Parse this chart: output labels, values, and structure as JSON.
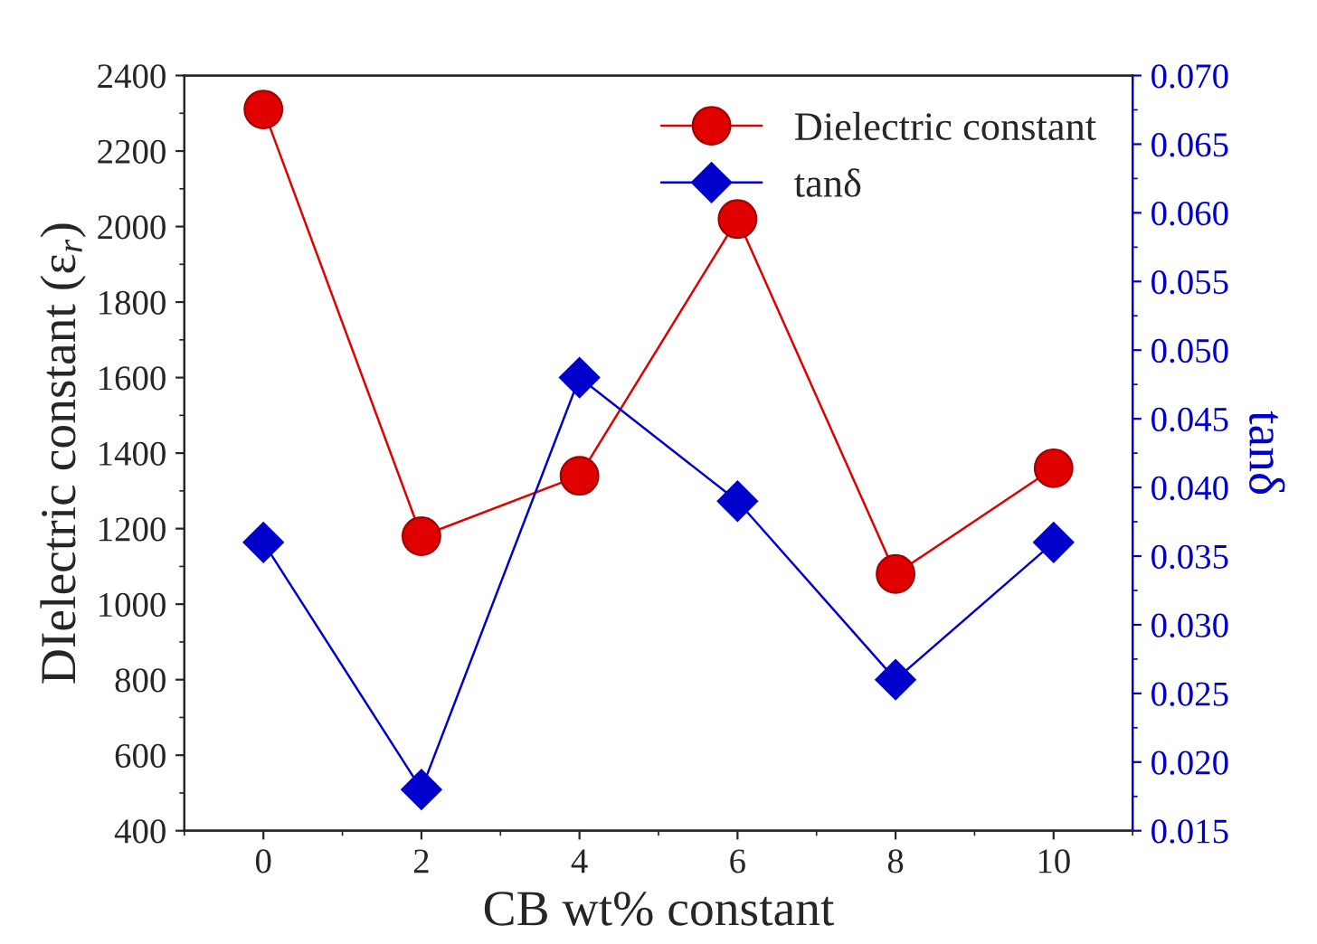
{
  "chart_data": {
    "type": "line",
    "xlabel": "CB wt% constant",
    "ylabel": "DIelectric constant (ε$_{r}$)",
    "y2label": "tanδ",
    "x": [
      0,
      2,
      4,
      6,
      8,
      10
    ],
    "series": [
      {
        "name": "Dielectric constant",
        "color": "#e00000",
        "marker": "circle",
        "values": [
          2310,
          1180,
          1340,
          2020,
          1080,
          1360
        ]
      },
      {
        "name": "tanδ",
        "color": "#0000cc",
        "marker": "diamond",
        "axis": "y2",
        "values": [
          0.036,
          0.018,
          0.048,
          0.039,
          0.026,
          0.036
        ]
      }
    ],
    "xlim": [
      -1,
      11
    ],
    "xticks": [
      0,
      2,
      4,
      6,
      8,
      10
    ],
    "ylim": [
      400,
      2400
    ],
    "yticks": [
      400,
      600,
      800,
      1000,
      1200,
      1400,
      1600,
      1800,
      2000,
      2200,
      2400
    ],
    "y2lim": [
      0.015,
      0.07
    ],
    "y2ticks": [
      {
        "value": 0.015,
        "label": "0.015"
      },
      {
        "value": 0.02,
        "label": "0.020"
      },
      {
        "value": 0.025,
        "label": "0.025"
      },
      {
        "value": 0.03,
        "label": "0.030"
      },
      {
        "value": 0.035,
        "label": "0.035"
      },
      {
        "value": 0.04,
        "label": "0.040"
      },
      {
        "value": 0.045,
        "label": "0.045"
      },
      {
        "value": 0.05,
        "label": "0.050"
      },
      {
        "value": 0.055,
        "label": "0.055"
      },
      {
        "value": 0.06,
        "label": "0.060"
      },
      {
        "value": 0.065,
        "label": "0.065"
      },
      {
        "value": 0.07,
        "label": "0.070"
      }
    ],
    "grid": false,
    "legend": "top right"
  }
}
